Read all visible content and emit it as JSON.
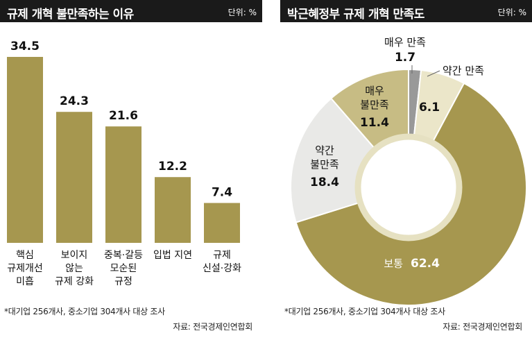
{
  "left": {
    "title": "규제 개혁 불만족하는 이유",
    "unit": "단위: %",
    "footnote": "*대기업 256개사, 중소기업 304개사 대상 조사",
    "source": "자료: 전국경제인연합회"
  },
  "right": {
    "title": "박근혜정부 규제 개혁 만족도",
    "unit": "단위: %",
    "footnote": "*대기업 256개사, 중소기업 304개사 대상 조사",
    "source": "자료: 전국경제인연합회"
  },
  "colors": {
    "bar": "#a6974f",
    "donut_normal": "#a6974f",
    "donut_very_dissatisfied": "#c7bc84",
    "donut_somewhat_dissatisfied": "#e9e9e7",
    "donut_very_satisfied": "#999999",
    "donut_somewhat_satisfied": "#ebe6c9",
    "header_bg": "#1a1a1a"
  },
  "chart_data": [
    {
      "type": "bar",
      "title": "규제 개혁 불만족하는 이유",
      "unit": "단위: %",
      "categories": [
        [
          "핵심",
          "규제개선",
          "미흡"
        ],
        [
          "보이지",
          "않는",
          "규제  강화"
        ],
        [
          "중복·갈등",
          "모순된",
          "규정"
        ],
        [
          "입법  지연"
        ],
        [
          "규제",
          "신설·강화"
        ]
      ],
      "values": [
        34.5,
        24.3,
        21.6,
        12.2,
        7.4
      ],
      "value_labels": [
        "34.5",
        "24.3",
        "21.6",
        "12.2",
        "7.4"
      ],
      "ylim": [
        0,
        36
      ],
      "grid": false
    },
    {
      "type": "pie",
      "title": "박근혜정부 규제 개혁 만족도",
      "unit": "단위: %",
      "slices": [
        {
          "label": [
            "매우  만족"
          ],
          "value": 1.7,
          "value_label": "1.7",
          "color": "#999999"
        },
        {
          "label": [
            "약간  만족"
          ],
          "value": 6.1,
          "value_label": "6.1",
          "color": "#ebe6c9"
        },
        {
          "label": [
            "보통"
          ],
          "value": 62.4,
          "value_label": "62.4",
          "color": "#a6974f"
        },
        {
          "label": [
            "약간",
            "불만족"
          ],
          "value": 18.4,
          "value_label": "18.4",
          "color": "#e9e9e7"
        },
        {
          "label": [
            "매우",
            "불만족"
          ],
          "value": 11.4,
          "value_label": "11.4",
          "color": "#c7bc84"
        }
      ]
    }
  ]
}
